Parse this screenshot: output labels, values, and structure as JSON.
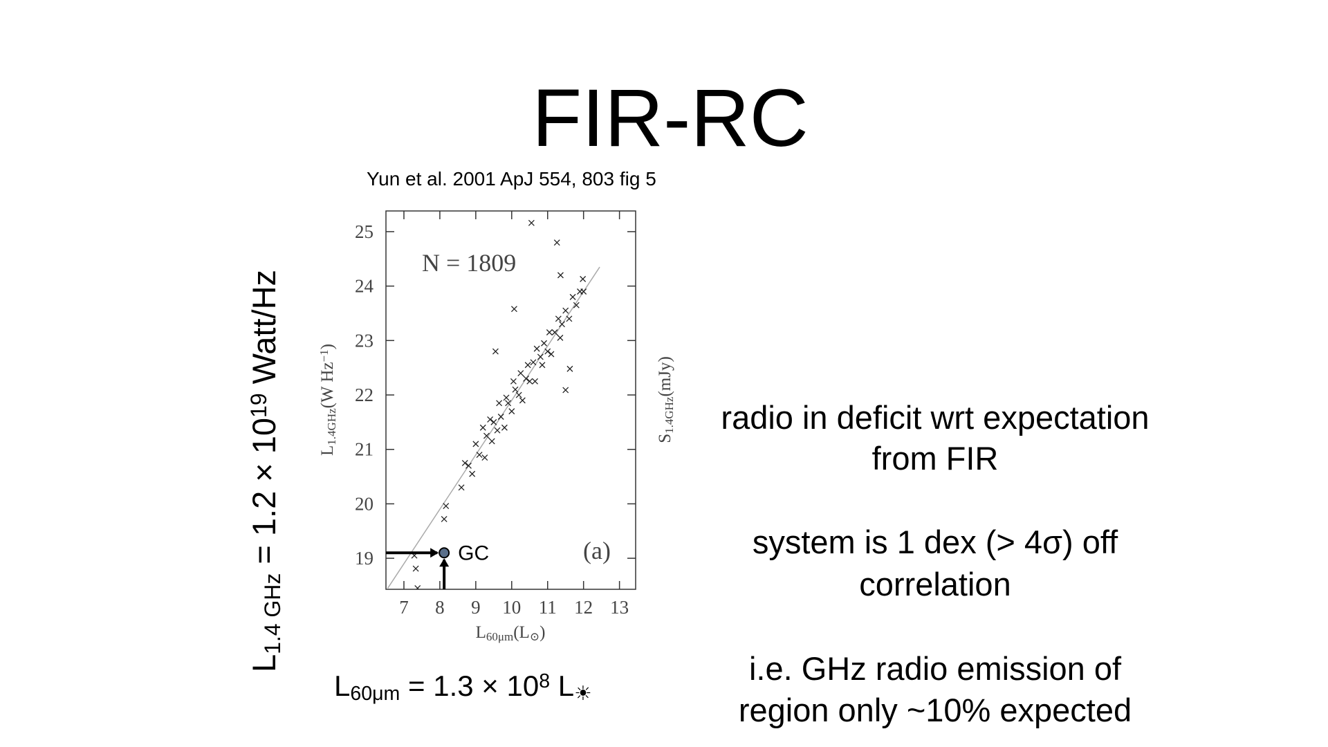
{
  "title": "FIR-RC",
  "citation": "Yun et al.  2001 ApJ 554, 803 fig 5",
  "left_formula": [
    {
      "text": "L",
      "pos": "base"
    },
    {
      "text": "1.4 GHz",
      "pos": "sub"
    },
    {
      "text": " = 1.2 × 10",
      "pos": "base"
    },
    {
      "text": "19",
      "pos": "sup"
    },
    {
      "text": "  Watt/Hz",
      "pos": "base"
    }
  ],
  "bottom_formula": [
    {
      "text": "L",
      "pos": "base"
    },
    {
      "text": "60μm",
      "pos": "sub"
    },
    {
      "text": " = 1.3 × 10",
      "pos": "base"
    },
    {
      "text": "8",
      "pos": "sup"
    },
    {
      "text": " L",
      "pos": "base"
    },
    {
      "text": "☀",
      "pos": "sub"
    }
  ],
  "notes": [
    [
      "radio in deficit wrt expectation",
      "from FIR"
    ],
    [
      "system is 1 dex (> 4σ) off",
      "correlation"
    ],
    [
      "i.e. GHz radio emission of",
      "region only ~10% expected"
    ]
  ],
  "chart_data": {
    "type": "scatter",
    "x_label": [
      {
        "text": "L",
        "pos": "base"
      },
      {
        "text": "60μm",
        "pos": "sub"
      },
      {
        "text": "(L",
        "pos": "base"
      },
      {
        "text": "⊙",
        "pos": "sub"
      },
      {
        "text": ")",
        "pos": "base"
      }
    ],
    "y_label": [
      {
        "text": "L",
        "pos": "base"
      },
      {
        "text": "1.4GHz",
        "pos": "sub"
      },
      {
        "text": "(W Hz",
        "pos": "base"
      },
      {
        "text": "−1",
        "pos": "sup"
      },
      {
        "text": ")",
        "pos": "base"
      }
    ],
    "y2_label": [
      {
        "text": "S",
        "pos": "base"
      },
      {
        "text": "1.4GHz",
        "pos": "sub"
      },
      {
        "text": "(mJy)",
        "pos": "base"
      }
    ],
    "annotations": [
      "N = 1809",
      "(a)"
    ],
    "color": "#222222",
    "xlim": [
      6.5,
      13.45
    ],
    "ylim": [
      18.43,
      25.38
    ],
    "xticks": [
      7,
      8,
      9,
      10,
      11,
      12,
      13
    ],
    "yticks": [
      19,
      20,
      21,
      22,
      23,
      24,
      25
    ],
    "fit_line": {
      "x": [
        6.55,
        12.45
      ],
      "y": [
        18.45,
        24.35
      ],
      "color": "#aaaaaa"
    },
    "highlight": {
      "label": "GC",
      "x": 8.12,
      "y": 19.1,
      "color": "#c8502a"
    },
    "x": [
      8.6,
      8.7,
      8.8,
      8.9,
      9.0,
      9.1,
      9.2,
      9.25,
      9.3,
      9.4,
      9.45,
      9.5,
      9.6,
      9.65,
      9.7,
      9.8,
      9.85,
      9.9,
      10.0,
      10.05,
      10.1,
      10.2,
      10.25,
      10.3,
      10.4,
      10.45,
      10.5,
      10.6,
      10.65,
      10.7,
      10.8,
      10.85,
      10.9,
      11.0,
      11.05,
      11.1,
      11.2,
      11.3,
      11.35,
      11.4,
      11.5,
      11.6,
      11.7,
      11.8,
      11.9,
      12.0,
      10.55,
      11.26,
      11.36,
      10.07,
      9.55,
      7.29,
      7.38,
      7.33,
      8.12,
      8.17,
      11.98,
      11.62,
      11.5
    ],
    "y": [
      20.3,
      20.75,
      20.7,
      20.55,
      21.1,
      20.9,
      21.4,
      20.85,
      21.25,
      21.55,
      21.15,
      21.5,
      21.35,
      21.85,
      21.6,
      21.4,
      21.95,
      21.85,
      21.7,
      22.25,
      22.1,
      22.0,
      22.4,
      21.9,
      22.3,
      22.55,
      22.25,
      22.6,
      22.25,
      22.85,
      22.7,
      22.55,
      22.95,
      22.8,
      23.15,
      22.75,
      23.15,
      23.4,
      23.05,
      23.3,
      23.55,
      23.4,
      23.8,
      23.65,
      23.9,
      23.9,
      25.16,
      24.8,
      24.2,
      23.58,
      22.8,
      19.05,
      18.45,
      18.81,
      19.72,
      19.96,
      24.13,
      22.48,
      22.09
    ]
  }
}
